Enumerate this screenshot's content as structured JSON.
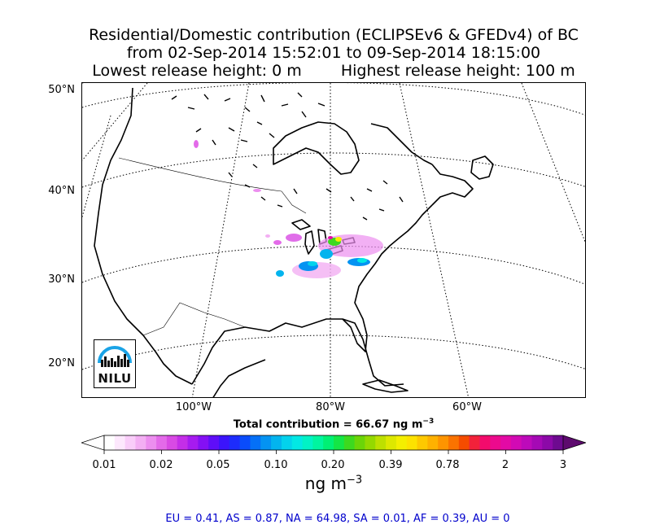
{
  "title": {
    "line1": "Residential/Domestic contribution (ECLIPSEv6 & GFEDv4) of BC",
    "line2": "from 02-Sep-2014 15:52:01 to 09-Sep-2014 18:15:00",
    "line3_left": "Lowest release height: 0 m",
    "line3_right": "Highest release height: 100 m"
  },
  "map": {
    "lat_labels": [
      "50°N",
      "40°N",
      "30°N",
      "20°N"
    ],
    "lon_labels": [
      "100°W",
      "80°W",
      "60°W"
    ],
    "logo_text": "NILU"
  },
  "total_contribution": "Total contribution = 66.67 ng m",
  "total_contribution_exp": "−3",
  "colorbar": {
    "tick_labels": [
      "0.01",
      "0.02",
      "0.05",
      "0.10",
      "0.20",
      "0.39",
      "0.78",
      "2",
      "3"
    ],
    "units": "ng m",
    "units_exp": "−3",
    "colors": [
      "#ffffff",
      "#fde8fd",
      "#f9cdf9",
      "#f3aff3",
      "#ec8eef",
      "#e36ae9",
      "#d84ae4",
      "#c42ee8",
      "#a61bf0",
      "#8410f4",
      "#5f0ef8",
      "#3b14fb",
      "#1d2cfc",
      "#0a4cfb",
      "#0570f7",
      "#0493f2",
      "#03b4ee",
      "#03d2ec",
      "#02e8e4",
      "#01f2c5",
      "#00f59f",
      "#00f074",
      "#14e646",
      "#3dd91f",
      "#6bd508",
      "#94d900",
      "#bde000",
      "#dde800",
      "#f4ef00",
      "#fde200",
      "#fec900",
      "#feb100",
      "#fd9400",
      "#fa7300",
      "#f54c00",
      "#f2223a",
      "#f30b6c",
      "#ec0a8d",
      "#e30aa5",
      "#d20ab4",
      "#bd0aba",
      "#a509b5",
      "#8c09a8",
      "#6e0a90"
    ],
    "extend_low_color": "#ffffff",
    "extend_high_color": "#5d0a6e"
  },
  "regions": "EU = 0.41,  AS = 0.87,  NA = 64.98,  SA = 0.01,  AF = 0.39,  AU = 0"
}
